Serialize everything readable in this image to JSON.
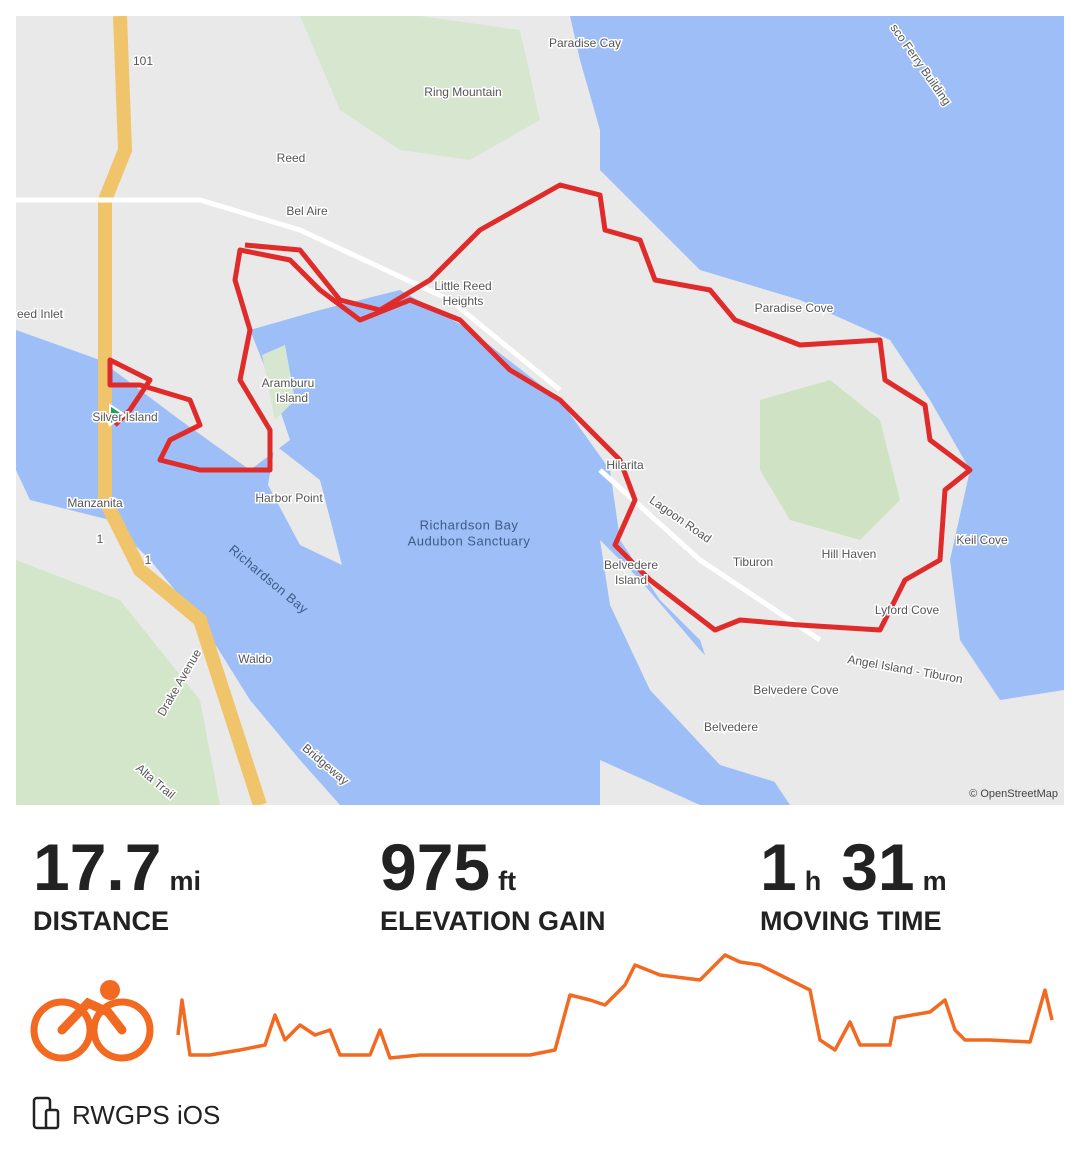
{
  "map": {
    "labels": [
      "Paradise Cay",
      "Ring Mountain",
      "Reed",
      "Bel Aire",
      "Little Reed",
      "Heights",
      "Paradise Cove",
      "eed Inlet",
      "Aramburu",
      "Island",
      "Silver Island",
      "Harbor Point",
      "Richardson Bay",
      "Audubon Sanctuary",
      "Hilarita",
      "Lagoon Road",
      "Tiburon",
      "Hill Haven",
      "Keil Cove",
      "Belvedere",
      "Island",
      "Lyford Cove",
      "Manzanita",
      "Richardson Bay",
      "Waldo",
      "Drake Avenue",
      "Belvedere Cove",
      "Belvedere",
      "Angel Island - Tiburon",
      "Alta Trail",
      "Bridgeway",
      "sco Ferry Building",
      "101",
      "1",
      "1"
    ],
    "attribution": "© OpenStreetMap"
  },
  "stats": [
    {
      "parts": [
        {
          "value": "17.7",
          "unit": "mi"
        }
      ],
      "label": "DISTANCE"
    },
    {
      "parts": [
        {
          "value": "975",
          "unit": "ft"
        }
      ],
      "label": "ELEVATION GAIN"
    },
    {
      "parts": [
        {
          "value": "1",
          "unit": "h"
        },
        {
          "value": "31",
          "unit": "m"
        }
      ],
      "label": "MOVING TIME"
    }
  ],
  "source": "RWGPS iOS"
}
